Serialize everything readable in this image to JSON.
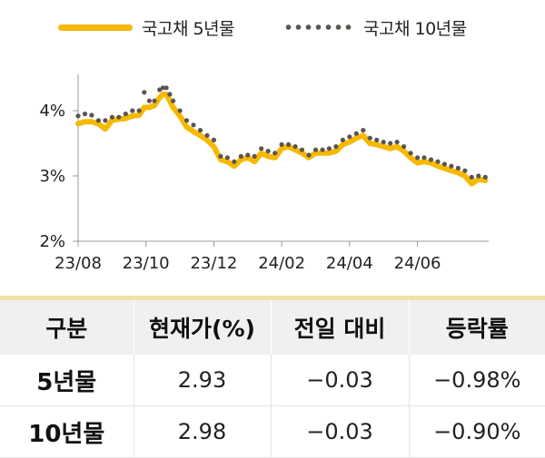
{
  "legend": {
    "series_5y": "국고채 5년물",
    "series_10y": "국고채 10년물"
  },
  "colors": {
    "series_5y": "#f6b900",
    "series_10y": "#5a5550",
    "axis": "#999999"
  },
  "chart_data": {
    "type": "line",
    "title": "",
    "xlabel": "",
    "ylabel": "",
    "ylim": [
      2,
      4.5
    ],
    "yticks": [
      "2%",
      "3%",
      "4%"
    ],
    "ytick_values": [
      2,
      3,
      4
    ],
    "xticks": [
      "23/08",
      "23/10",
      "23/12",
      "24/02",
      "24/04",
      "24/06"
    ],
    "xtick_positions": [
      0,
      2,
      4,
      6,
      8,
      10
    ],
    "xlim": [
      0,
      12.1
    ],
    "series": [
      {
        "name": "국고채 5년물",
        "style": "solid",
        "x": [
          0,
          0.2,
          0.4,
          0.6,
          0.8,
          1.0,
          1.2,
          1.4,
          1.6,
          1.8,
          1.95,
          2.1,
          2.25,
          2.4,
          2.5,
          2.6,
          2.7,
          2.8,
          3.0,
          3.2,
          3.4,
          3.6,
          3.8,
          4.0,
          4.2,
          4.4,
          4.6,
          4.8,
          5.0,
          5.2,
          5.4,
          5.6,
          5.8,
          6.0,
          6.2,
          6.4,
          6.6,
          6.8,
          7.0,
          7.2,
          7.4,
          7.6,
          7.8,
          8.0,
          8.2,
          8.4,
          8.6,
          8.8,
          9.0,
          9.2,
          9.4,
          9.6,
          9.8,
          10.0,
          10.2,
          10.4,
          10.6,
          10.8,
          11.0,
          11.2,
          11.4,
          11.6,
          11.8,
          12.0
        ],
        "values": [
          3.8,
          3.83,
          3.83,
          3.8,
          3.72,
          3.85,
          3.87,
          3.88,
          3.92,
          3.93,
          4.05,
          4.05,
          4.08,
          4.2,
          4.25,
          4.25,
          4.15,
          4.05,
          3.92,
          3.75,
          3.68,
          3.62,
          3.55,
          3.45,
          3.25,
          3.22,
          3.15,
          3.25,
          3.28,
          3.22,
          3.35,
          3.3,
          3.28,
          3.42,
          3.45,
          3.4,
          3.35,
          3.28,
          3.35,
          3.35,
          3.35,
          3.38,
          3.48,
          3.52,
          3.58,
          3.62,
          3.5,
          3.48,
          3.45,
          3.42,
          3.45,
          3.38,
          3.28,
          3.2,
          3.22,
          3.2,
          3.15,
          3.12,
          3.08,
          3.05,
          3.0,
          2.88,
          2.95,
          2.93
        ]
      },
      {
        "name": "국고채 10년물",
        "style": "dotted",
        "x": [
          0,
          0.2,
          0.4,
          0.6,
          0.8,
          1.0,
          1.2,
          1.4,
          1.6,
          1.8,
          1.95,
          2.1,
          2.25,
          2.4,
          2.5,
          2.6,
          2.7,
          2.8,
          3.0,
          3.2,
          3.4,
          3.6,
          3.8,
          4.0,
          4.2,
          4.4,
          4.6,
          4.8,
          5.0,
          5.2,
          5.4,
          5.6,
          5.8,
          6.0,
          6.2,
          6.4,
          6.6,
          6.8,
          7.0,
          7.2,
          7.4,
          7.6,
          7.8,
          8.0,
          8.2,
          8.4,
          8.6,
          8.8,
          9.0,
          9.2,
          9.4,
          9.6,
          9.8,
          10.0,
          10.2,
          10.4,
          10.6,
          10.8,
          11.0,
          11.2,
          11.4,
          11.6,
          11.8,
          12.0
        ],
        "values": [
          3.92,
          3.95,
          3.93,
          3.85,
          3.85,
          3.9,
          3.9,
          3.95,
          4.0,
          4.0,
          4.28,
          4.15,
          4.15,
          4.32,
          4.35,
          4.35,
          4.25,
          4.15,
          4.0,
          3.85,
          3.78,
          3.7,
          3.62,
          3.55,
          3.3,
          3.28,
          3.22,
          3.3,
          3.32,
          3.3,
          3.42,
          3.38,
          3.35,
          3.48,
          3.48,
          3.45,
          3.4,
          3.32,
          3.4,
          3.4,
          3.42,
          3.45,
          3.55,
          3.6,
          3.65,
          3.7,
          3.58,
          3.55,
          3.52,
          3.5,
          3.52,
          3.45,
          3.35,
          3.28,
          3.28,
          3.25,
          3.22,
          3.18,
          3.15,
          3.12,
          3.08,
          2.98,
          3.0,
          2.98
        ]
      }
    ]
  },
  "table": {
    "headers": [
      "구분",
      "현재가(%)",
      "전일 대비",
      "등락률"
    ],
    "rows": [
      {
        "label": "5년물",
        "price": "2.93",
        "change": "−0.03",
        "rate": "−0.98%"
      },
      {
        "label": "10년물",
        "price": "2.98",
        "change": "−0.03",
        "rate": "−0.90%"
      }
    ]
  }
}
